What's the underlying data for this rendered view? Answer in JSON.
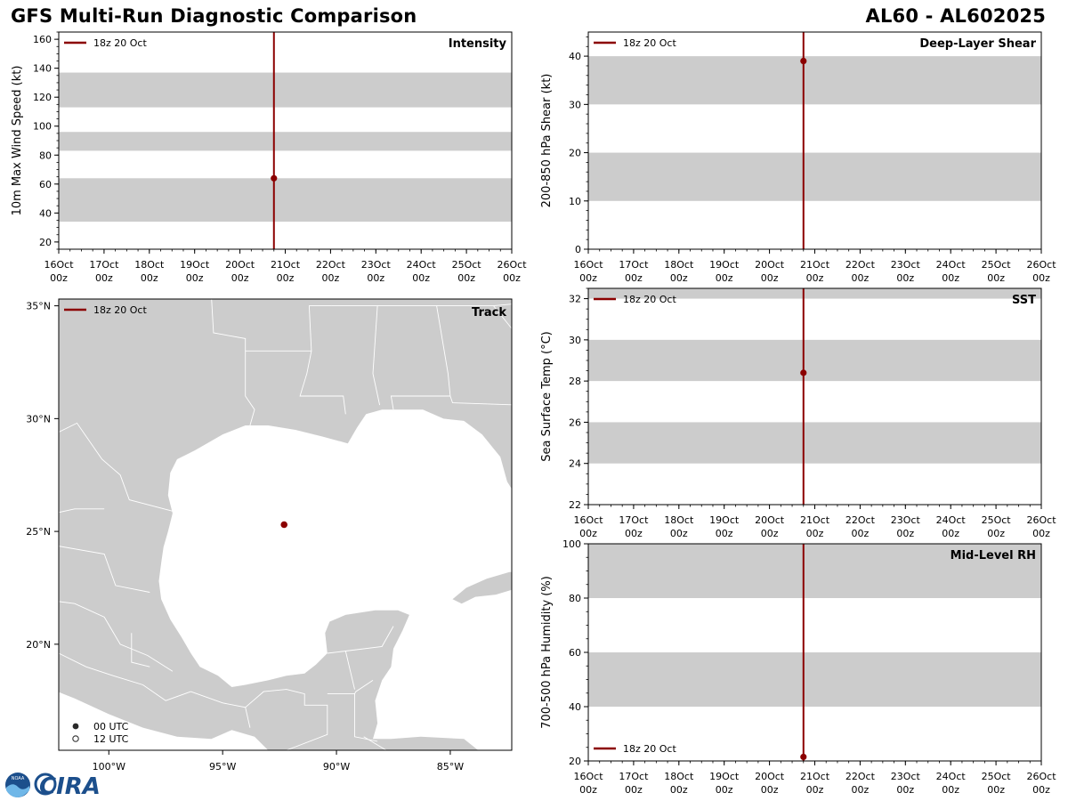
{
  "header": {
    "title": "GFS Multi-Run Diagnostic Comparison",
    "storm_id": "AL60 - AL602025"
  },
  "logos": {
    "noaa_text": "NOAA",
    "cira_text": "CIRA"
  },
  "colors": {
    "run": "#8b0000",
    "band": "#cccccc",
    "land": "#cccccc",
    "ocean": "#ffffff",
    "border": "#ffffff",
    "marker_00": "#2a2a2a",
    "logo_blue": "#1c4f8c"
  },
  "time_axis": {
    "day_labels": [
      "16Oct",
      "17Oct",
      "18Oct",
      "19Oct",
      "20Oct",
      "21Oct",
      "22Oct",
      "23Oct",
      "24Oct",
      "25Oct",
      "26Oct"
    ],
    "hour_label": "00z",
    "range_days": [
      16,
      26
    ],
    "run_time_days": 20.75
  },
  "chart_data": [
    {
      "id": "intensity",
      "type": "line",
      "title": "Intensity",
      "ylabel": "10m Max Wind Speed (kt)",
      "ylim": [
        15,
        165
      ],
      "yticks": [
        20,
        40,
        60,
        80,
        100,
        120,
        140,
        160
      ],
      "ytick_labels": [
        "20",
        "40",
        "60",
        "80",
        "100",
        "120",
        "140",
        "160"
      ],
      "minor_step": 5,
      "bands": [
        [
          34,
          64
        ],
        [
          83,
          96
        ],
        [
          113,
          137
        ]
      ],
      "legend": {
        "label": "18z 20 Oct",
        "position": "top-left"
      },
      "series": [
        {
          "name": "18z 20 Oct",
          "x": [
            20.75
          ],
          "y": [
            64
          ]
        }
      ]
    },
    {
      "id": "shear",
      "type": "line",
      "title": "Deep-Layer Shear",
      "ylabel": "200-850 hPa Shear (kt)",
      "ylim": [
        0,
        45
      ],
      "yticks": [
        0,
        10,
        20,
        30,
        40
      ],
      "ytick_labels": [
        "0",
        "10",
        "20",
        "30",
        "40"
      ],
      "minor_step": 2,
      "bands": [
        [
          10,
          20
        ],
        [
          30,
          40
        ]
      ],
      "legend": {
        "label": "18z 20 Oct",
        "position": "top-left"
      },
      "series": [
        {
          "name": "18z 20 Oct",
          "x": [
            20.75
          ],
          "y": [
            39
          ]
        }
      ]
    },
    {
      "id": "sst",
      "type": "line",
      "title": "SST",
      "ylabel": "Sea Surface Temp (°C)",
      "ylim": [
        22,
        32.5
      ],
      "yticks": [
        22,
        24,
        26,
        28,
        30,
        32
      ],
      "ytick_labels": [
        "22",
        "24",
        "26",
        "28",
        "30",
        "32"
      ],
      "minor_step": 0.5,
      "bands": [
        [
          24,
          26
        ],
        [
          28,
          30
        ],
        [
          32,
          34
        ]
      ],
      "legend": {
        "label": "18z 20 Oct",
        "position": "top-left"
      },
      "series": [
        {
          "name": "18z 20 Oct",
          "x": [
            20.75
          ],
          "y": [
            28.4
          ]
        }
      ]
    },
    {
      "id": "rh",
      "type": "line",
      "title": "Mid-Level RH",
      "ylabel": "700-500 hPa Humidity (%)",
      "ylim": [
        20,
        100
      ],
      "yticks": [
        20,
        40,
        60,
        80,
        100
      ],
      "ytick_labels": [
        "20",
        "40",
        "60",
        "80",
        "100"
      ],
      "minor_step": 5,
      "bands": [
        [
          40,
          60
        ],
        [
          80,
          100
        ]
      ],
      "legend": {
        "label": "18z 20 Oct",
        "position": "bottom-left"
      },
      "series": [
        {
          "name": "18z 20 Oct",
          "x": [
            20.75
          ],
          "y": [
            21.5
          ]
        }
      ]
    },
    {
      "id": "track",
      "type": "scatter",
      "title": "Track",
      "xlim": [
        -102.2,
        -82.3
      ],
      "ylim": [
        15.3,
        35.3
      ],
      "xticks": [
        -100,
        -95,
        -90,
        -85
      ],
      "xtick_labels": [
        "100°W",
        "95°W",
        "90°W",
        "85°W"
      ],
      "yticks": [
        20,
        25,
        30,
        35
      ],
      "ytick_labels": [
        "20°N",
        "25°N",
        "30°N",
        "35°N"
      ],
      "legend": {
        "label": "18z 20 Oct",
        "position": "top-left"
      },
      "marker_legend": [
        "00 UTC",
        "12 UTC"
      ],
      "points": [
        {
          "name": "18z 20 Oct",
          "lon": -92.3,
          "lat": 25.3
        }
      ]
    }
  ]
}
